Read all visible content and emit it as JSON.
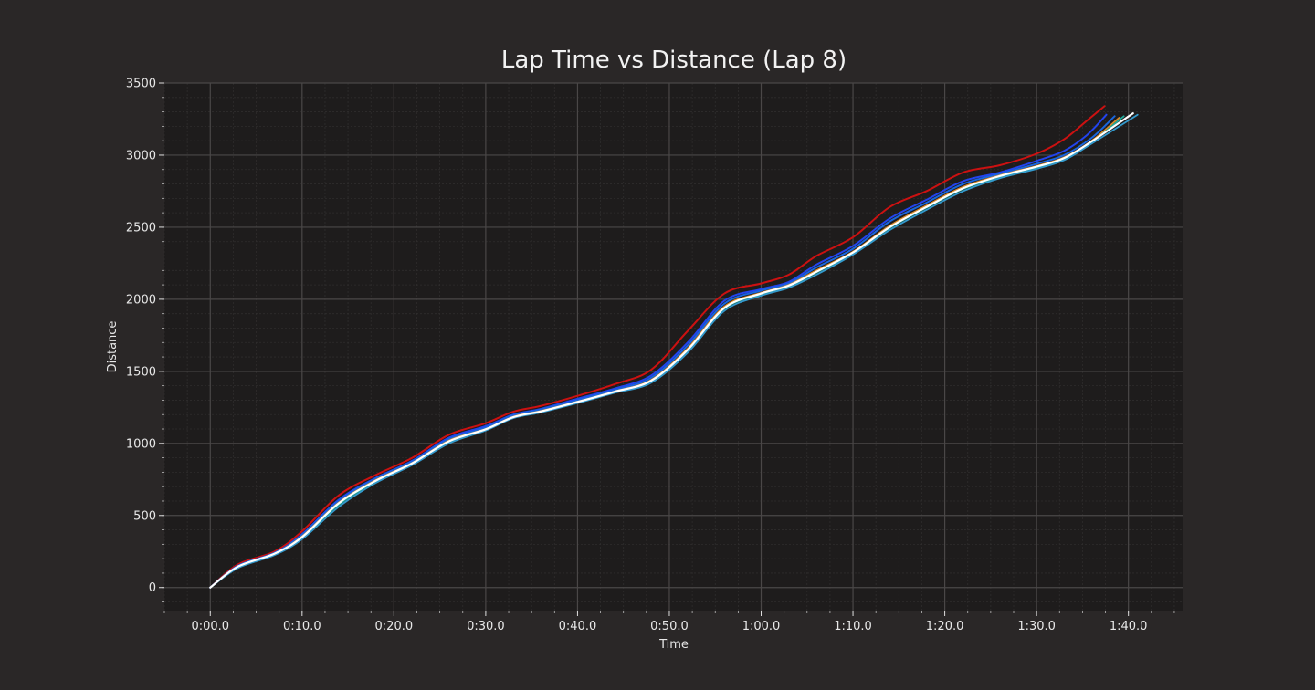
{
  "chart_data": {
    "type": "line",
    "title": "Lap Time vs Distance (Lap 8)",
    "xlabel": "Time",
    "ylabel": "Distance",
    "xlim": [
      -5,
      106
    ],
    "ylim": [
      -160,
      3500
    ],
    "x_ticks": [
      0,
      10,
      20,
      30,
      40,
      50,
      60,
      70,
      80,
      90,
      100
    ],
    "x_tick_labels": [
      "0:00.0",
      "0:10.0",
      "0:20.0",
      "0:30.0",
      "0:40.0",
      "0:50.0",
      "1:00.0",
      "1:10.0",
      "1:20.0",
      "1:30.0",
      "1:40.0"
    ],
    "y_ticks": [
      0,
      500,
      1000,
      1500,
      2000,
      2500,
      3000,
      3500
    ],
    "y_tick_labels": [
      "0",
      "500",
      "1000",
      "1500",
      "2000",
      "2500",
      "3000",
      "3500"
    ],
    "grid": true,
    "legend": "none",
    "background": "#2a2727",
    "plot_background": "#1e1c1c",
    "grid_major_color": "#4a4747",
    "grid_minor_color": "#2f2d2d",
    "series": [
      {
        "color": "#cc1111",
        "width": 2.0,
        "x": [
          0,
          3,
          7,
          10,
          14,
          18,
          22,
          26,
          30,
          33,
          36,
          40,
          44,
          48,
          52,
          56,
          60,
          63,
          66,
          70,
          74,
          78,
          82,
          86,
          90,
          93,
          95.5,
          97.4
        ],
        "y": [
          0,
          160,
          250,
          390,
          640,
          780,
          900,
          1060,
          1140,
          1220,
          1260,
          1330,
          1410,
          1510,
          1780,
          2040,
          2110,
          2170,
          2300,
          2430,
          2640,
          2750,
          2880,
          2930,
          3010,
          3110,
          3240,
          3340
        ]
      },
      {
        "color": "#2244ee",
        "width": 2.0,
        "x": [
          0,
          3,
          7,
          10,
          14,
          18,
          22,
          26,
          30,
          33,
          36,
          40,
          44,
          48,
          52,
          56,
          60,
          63,
          66,
          70,
          74,
          78,
          82,
          86,
          90,
          93,
          95.5,
          97.6
        ],
        "y": [
          0,
          150,
          240,
          370,
          610,
          760,
          880,
          1040,
          1120,
          1200,
          1240,
          1310,
          1380,
          1470,
          1700,
          1990,
          2070,
          2120,
          2240,
          2370,
          2560,
          2690,
          2820,
          2880,
          2960,
          3030,
          3140,
          3280
        ]
      },
      {
        "color": "#1a66dd",
        "width": 2.0,
        "x": [
          0,
          3,
          7,
          10,
          14,
          18,
          22,
          26,
          30,
          33,
          36,
          40,
          44,
          48,
          52,
          56,
          60,
          63,
          66,
          70,
          74,
          78,
          82,
          86,
          90,
          93,
          96,
          98.5
        ],
        "y": [
          0,
          150,
          240,
          365,
          600,
          755,
          875,
          1030,
          1110,
          1195,
          1235,
          1300,
          1370,
          1455,
          1680,
          1970,
          2060,
          2110,
          2220,
          2350,
          2540,
          2670,
          2800,
          2870,
          2940,
          3000,
          3120,
          3270
        ]
      },
      {
        "color": "#d98a2a",
        "width": 1.8,
        "x": [
          0,
          3,
          7,
          10,
          14,
          18,
          22,
          26,
          30,
          33,
          36,
          40,
          44,
          48,
          52,
          56,
          60,
          63,
          66,
          70,
          74,
          78,
          82,
          86,
          90,
          93,
          96,
          99.0
        ],
        "y": [
          0,
          145,
          235,
          355,
          590,
          745,
          865,
          1020,
          1100,
          1185,
          1225,
          1290,
          1360,
          1440,
          1660,
          1950,
          2045,
          2100,
          2200,
          2330,
          2510,
          2650,
          2780,
          2860,
          2925,
          2985,
          3100,
          3260
        ]
      },
      {
        "color": "#22aa99",
        "width": 1.8,
        "x": [
          0,
          3,
          7,
          10,
          14,
          18,
          22,
          26,
          30,
          33,
          36,
          40,
          44,
          48,
          52,
          56,
          60,
          63,
          66,
          70,
          74,
          78,
          82,
          86,
          90,
          93,
          96,
          99.5
        ],
        "y": [
          0,
          140,
          230,
          345,
          575,
          735,
          860,
          1010,
          1095,
          1180,
          1220,
          1285,
          1355,
          1430,
          1645,
          1935,
          2035,
          2090,
          2185,
          2320,
          2495,
          2635,
          2765,
          2850,
          2915,
          2975,
          3090,
          3270
        ]
      },
      {
        "color": "#3399cc",
        "width": 1.8,
        "x": [
          0,
          3,
          7,
          10,
          14,
          18,
          22,
          26,
          30,
          33,
          36,
          40,
          44,
          48,
          52,
          56,
          60,
          63,
          66,
          70,
          74,
          78,
          82,
          86,
          90,
          93,
          96,
          101.0
        ],
        "y": [
          0,
          135,
          225,
          335,
          560,
          725,
          850,
          1000,
          1090,
          1175,
          1215,
          1280,
          1350,
          1420,
          1630,
          1920,
          2025,
          2080,
          2170,
          2310,
          2480,
          2620,
          2750,
          2840,
          2905,
          2965,
          3080,
          3280
        ]
      },
      {
        "color": "#ffffff",
        "width": 2.2,
        "x": [
          0,
          3,
          7,
          10,
          14,
          18,
          22,
          26,
          30,
          33,
          36,
          40,
          44,
          48,
          52,
          56,
          60,
          63,
          66,
          70,
          74,
          78,
          82,
          86,
          90,
          93,
          96,
          100.5
        ],
        "y": [
          0,
          145,
          235,
          350,
          585,
          740,
          862,
          1015,
          1098,
          1182,
          1222,
          1288,
          1358,
          1435,
          1650,
          1940,
          2040,
          2095,
          2190,
          2325,
          2500,
          2640,
          2770,
          2855,
          2920,
          2980,
          3095,
          3290
        ]
      }
    ]
  }
}
